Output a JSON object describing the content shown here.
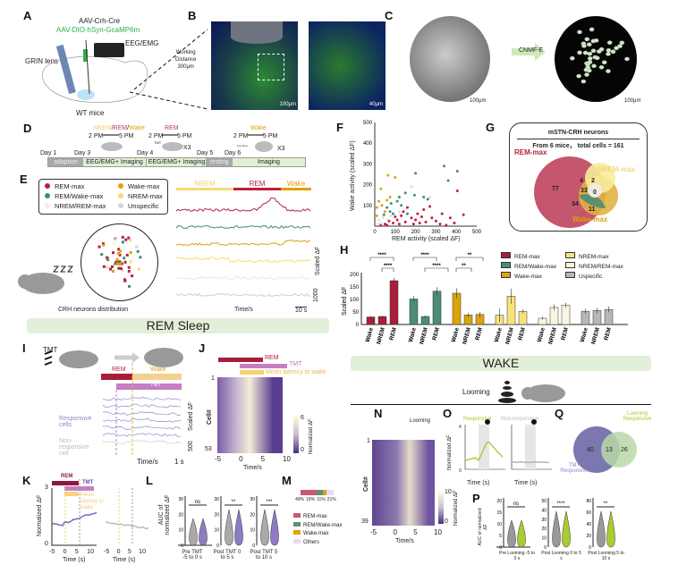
{
  "panels": {
    "A": "A",
    "B": "B",
    "C": "C",
    "D": "D",
    "E": "E",
    "F": "F",
    "G": "G",
    "H": "H",
    "I": "I",
    "J": "J",
    "K": "K",
    "L": "L",
    "M": "M",
    "N": "N",
    "O": "O",
    "P": "P",
    "Q": "Q"
  },
  "A": {
    "virus1": "AAV-Crh-Cre",
    "virus2": "AAV-DIO-hSyn-GcaMP6m",
    "eeg": "EEG/EMG",
    "lens": "GRIN lens",
    "mice": "WT mice"
  },
  "B": {
    "wd1": "Working",
    "wd2": "Distance",
    "wd3": "300μm",
    "scale1": "100μm",
    "scale2": "40μm"
  },
  "C": {
    "method": "CNMF-E",
    "scale1": "100μm",
    "scale2": "100μm"
  },
  "D": {
    "days": [
      "Day 1",
      "Day 3",
      "Day 4",
      "Day 5",
      "Day 6"
    ],
    "segments": [
      "adaption",
      "EEG/EMG+ Imaging",
      "EEG/EMG+ Imaging",
      "resting",
      "Imaging"
    ],
    "s1": {
      "nrem": "NREM",
      "rem": "REM",
      "wake": "Wake",
      "t1": "2 PM",
      "t2": "5 PM"
    },
    "s2": {
      "rem": "REM",
      "t1": "2 PM",
      "t2": "5 PM",
      "tmt": "TMT",
      "x": "X3"
    },
    "s3": {
      "wake": "Wake",
      "t1": "2 PM",
      "t2": "5 PM",
      "loom": "Looming",
      "x": "X3"
    }
  },
  "E": {
    "legend": [
      {
        "label": "REM-max",
        "color": "#b5223f"
      },
      {
        "label": "Wake-max",
        "color": "#e0a10a"
      },
      {
        "label": "REM/Wake-max",
        "color": "#3f8f73"
      },
      {
        "label": "NREM-max",
        "color": "#f5de6e"
      },
      {
        "label": "NREM/REM-max",
        "color": "#f3efdc"
      },
      {
        "label": "Unspecific",
        "color": "#d5d5d8"
      }
    ],
    "states": [
      "NREM",
      "REM",
      "Wake"
    ],
    "dist_label": "CRH neurons distribution",
    "time": "Time/s",
    "scale_t": "10 s",
    "scale_f": "1000",
    "ylabel": "Scaled ΔF"
  },
  "F": {
    "xlabel": "REM activity (scaled ΔF)",
    "ylabel": "Wake activity (scaled ΔF)",
    "ticks": [
      "0",
      "100",
      "200",
      "300",
      "400",
      "500"
    ],
    "points": [
      [
        340,
        290,
        "g"
      ],
      [
        405,
        265,
        "g"
      ],
      [
        360,
        220,
        "g"
      ],
      [
        200,
        255,
        "g"
      ],
      [
        180,
        190,
        "g"
      ],
      [
        150,
        160,
        "g"
      ],
      [
        195,
        150,
        "g"
      ],
      [
        120,
        140,
        "g"
      ],
      [
        110,
        120,
        "g"
      ],
      [
        60,
        90,
        "g"
      ],
      [
        80,
        110,
        "g"
      ],
      [
        130,
        100,
        "g"
      ],
      [
        75,
        70,
        "g"
      ],
      [
        45,
        55,
        "g"
      ],
      [
        90,
        60,
        "g"
      ],
      [
        240,
        140,
        "g"
      ],
      [
        260,
        130,
        "g"
      ],
      [
        160,
        60,
        "g"
      ],
      [
        65,
        245,
        "y"
      ],
      [
        100,
        235,
        "y"
      ],
      [
        30,
        180,
        "y"
      ],
      [
        20,
        120,
        "y"
      ],
      [
        10,
        90,
        "y"
      ],
      [
        35,
        100,
        "y"
      ],
      [
        10,
        50,
        "y"
      ],
      [
        60,
        125,
        "y"
      ],
      [
        75,
        140,
        "y"
      ],
      [
        50,
        70,
        "y"
      ],
      [
        405,
        170,
        "r"
      ],
      [
        435,
        55,
        "r"
      ],
      [
        390,
        15,
        "r"
      ],
      [
        370,
        40,
        "r"
      ],
      [
        330,
        60,
        "r"
      ],
      [
        300,
        25,
        "r"
      ],
      [
        270,
        95,
        "r"
      ],
      [
        240,
        80,
        "r"
      ],
      [
        210,
        60,
        "r"
      ],
      [
        180,
        40,
        "r"
      ],
      [
        150,
        20,
        "r"
      ],
      [
        130,
        50,
        "r"
      ],
      [
        110,
        30,
        "r"
      ],
      [
        90,
        15,
        "r"
      ],
      [
        70,
        25,
        "r"
      ],
      [
        50,
        10,
        "r"
      ],
      [
        30,
        5,
        "r"
      ],
      [
        200,
        30,
        "r"
      ],
      [
        250,
        20,
        "r"
      ],
      [
        280,
        40,
        "r"
      ],
      [
        320,
        10,
        "r"
      ],
      [
        160,
        90,
        "r"
      ],
      [
        120,
        10,
        "r"
      ],
      [
        100,
        45,
        "r"
      ],
      [
        60,
        5,
        "r"
      ],
      [
        220,
        15,
        "r"
      ],
      [
        140,
        70,
        "r"
      ],
      [
        350,
        5,
        "r"
      ],
      [
        230,
        45,
        "r"
      ],
      [
        190,
        10,
        "r"
      ],
      [
        180,
        190,
        "u"
      ],
      [
        270,
        140,
        "u"
      ],
      [
        120,
        70,
        "u"
      ],
      [
        40,
        40,
        "u"
      ],
      [
        20,
        30,
        "u"
      ],
      [
        80,
        50,
        "u"
      ],
      [
        60,
        30,
        "u"
      ],
      [
        30,
        15,
        "u"
      ],
      [
        15,
        10,
        "u"
      ]
    ]
  },
  "G": {
    "title": "mSTN-CRH neurons",
    "subtitle": "From 6 mice， total cells = 161",
    "rem": "REM-max",
    "nrem": "NREM-max",
    "wake": "Wake-max",
    "n_rem": "77",
    "n_nrem_only": "2",
    "n_center": "33",
    "n_rem_nrem": "4",
    "n_zero": "0",
    "n_rem_wake": "34",
    "n_wake": "11"
  },
  "H": {
    "ylabel": "Scaled ΔF",
    "yticks": [
      "0",
      "50",
      "100",
      "150",
      "200"
    ],
    "states": [
      "Wake",
      "NREM",
      "REM"
    ],
    "groups": [
      {
        "name": "REM-max",
        "color": "#a81e3a",
        "values": [
          30,
          32,
          175
        ],
        "err": [
          4,
          3,
          12
        ]
      },
      {
        "name": "REM/Wake-max",
        "color": "#4b8d78",
        "values": [
          102,
          32,
          133
        ],
        "err": [
          12,
          5,
          16
        ]
      },
      {
        "name": "Wake-max",
        "color": "#dca40c",
        "values": [
          125,
          38,
          40
        ],
        "err": [
          20,
          9,
          10
        ]
      },
      {
        "name": "NREM-max",
        "color": "#f7e27a",
        "values": [
          37,
          113,
          52
        ],
        "err": [
          27,
          30,
          8
        ]
      },
      {
        "name": "NREM/REM-max",
        "color": "#fbf6df",
        "values": [
          25,
          68,
          77
        ],
        "err": [
          6,
          12,
          10
        ]
      },
      {
        "name": "Uspecific",
        "color": "#b7b7bd",
        "values": [
          53,
          56,
          60
        ],
        "err": [
          10,
          11,
          12
        ]
      }
    ],
    "sig": [
      "****",
      "****",
      "****",
      "****",
      "**",
      "**"
    ]
  },
  "banner_rem": "REM Sleep",
  "banner_wake": "WAKE",
  "I": {
    "tmt": "TMT",
    "rem": "REM",
    "wake": "Wake",
    "tmt_bar": "TMT",
    "resp": "Responsive cells",
    "nonresp": "Non-responsive cell",
    "time": "Time/s",
    "scale_t": "1 s",
    "scale_f": "500",
    "ylabel": "Scaled ΔF"
  },
  "J": {
    "rem": "REM",
    "tmt": "TMT",
    "latency": "Mean latency to wake",
    "ylabel": "Cell#",
    "first": "1",
    "last": "53",
    "xticks": [
      "-5",
      "0",
      "5",
      "10"
    ],
    "xlabel": "Time/s",
    "cmax": "6",
    "cmin": "0",
    "clabel": "Normalized ΔF"
  },
  "K": {
    "rem": "REM",
    "tmt": "TMT",
    "latency": "Mean latency to wake",
    "ylabel": "Normalized ΔF",
    "ytop": "3",
    "ybot": "0",
    "xticks": [
      "-5",
      "0",
      "5",
      "10"
    ],
    "xlabel": "Time (s)"
  },
  "L": {
    "ylabel": "AUC of normalized ΔF",
    "yticks": [
      "0",
      "10",
      "20",
      "30"
    ],
    "groups": [
      "Pre TMT -5 to 0 s",
      "Post TMT 0 to 5 s",
      "Post TMT 5 to 10 s"
    ],
    "sig": [
      "ns",
      "**",
      "***"
    ]
  },
  "M": {
    "fractions": [
      49,
      19,
      11,
      21
    ],
    "labels": [
      "49%",
      "19%",
      "11%",
      "21%"
    ],
    "colors": [
      "#c85a70",
      "#5f8f76",
      "#e0a10a",
      "#eadcf0"
    ],
    "legend": [
      "REM-max",
      "REM/Wake-max",
      "Wake-max",
      "Others"
    ]
  },
  "looming": "Looming",
  "N": {
    "looming": "Looming",
    "ylabel": "Cell#",
    "first": "1",
    "last": "39",
    "xticks": [
      "-5",
      "0",
      "5",
      "10"
    ],
    "xlabel": "Time/s",
    "cmax": "10",
    "cmin": "0",
    "clabel": "Normalized ΔF"
  },
  "O": {
    "resp": "Responsive",
    "nonresp": "Non-responsive",
    "ylabel": "Normalized ΔF",
    "ytop": "4",
    "ybot": "0",
    "xlabel": "Time (s)",
    "xticks": [
      "-5",
      "0",
      "5",
      "10"
    ]
  },
  "Q": {
    "loom": "Looming Responsive",
    "tmt": "TMT Responsive",
    "a": "40",
    "b": "13",
    "c": "26"
  },
  "P": {
    "ylabel": "AUC of normalized ΔF",
    "groups": [
      "Pre Looming -5 to 0 s",
      "Post Looming 0 to 5 s",
      "Post Looming 5 to 10 s"
    ],
    "sig": [
      "ns",
      "****",
      "**"
    ],
    "yt1": [
      "0",
      "5",
      "10",
      "15",
      "20"
    ],
    "yt2": [
      "0",
      "10",
      "20",
      "30",
      "40",
      "50"
    ],
    "yt3": [
      "0",
      "20",
      "40",
      "60",
      "80"
    ]
  }
}
